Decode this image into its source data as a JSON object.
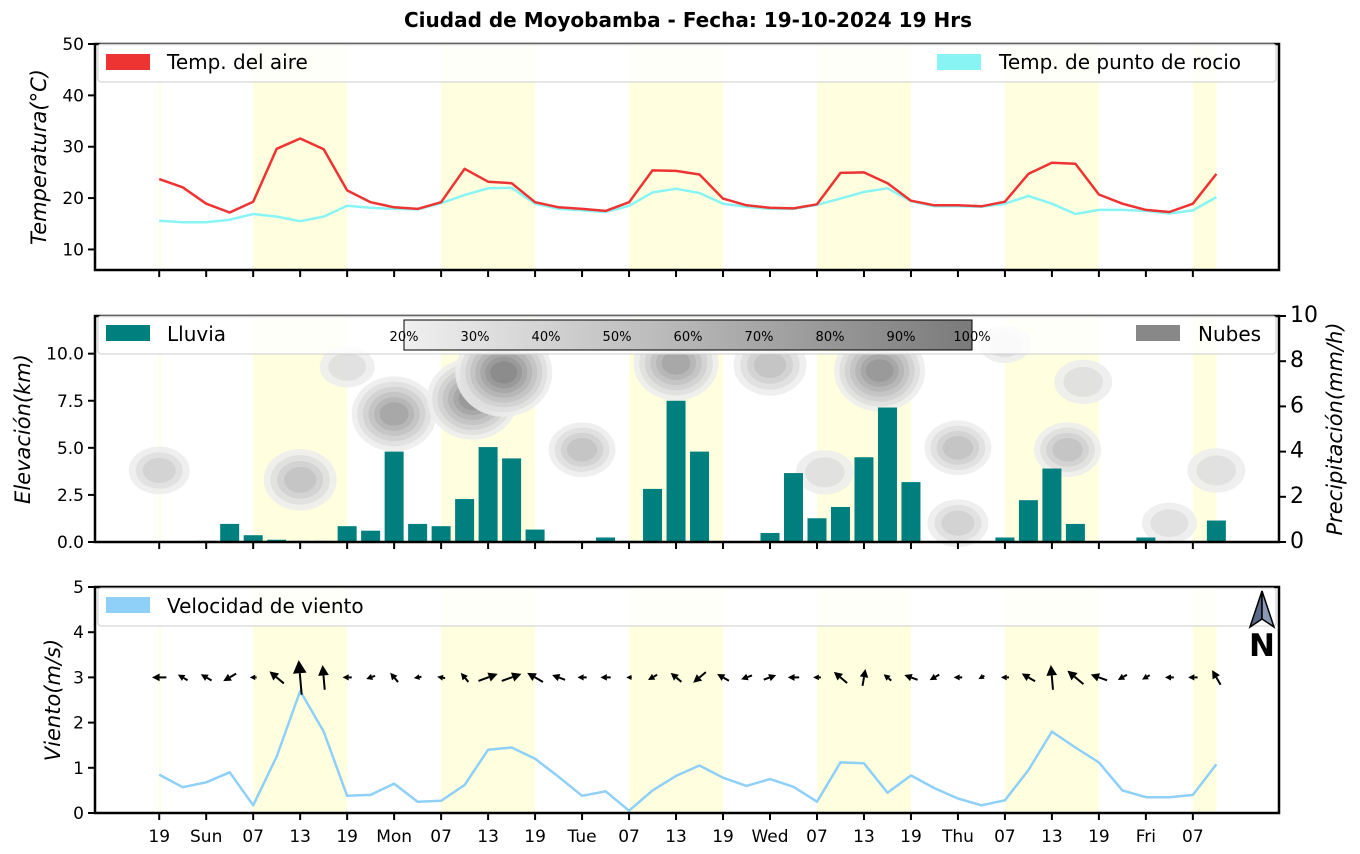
{
  "title": "Ciudad de Moyobamba   -   Fecha: 19-10-2024 19 Hrs",
  "colors": {
    "temp_air": "#ee3333",
    "temp_dew": "#88f4f4",
    "rain": "#007f7f",
    "clouds": "#888888",
    "wind": "#8fd0f8",
    "day_band": "#ffffe0"
  },
  "x_axis": {
    "tick_labels": [
      "19",
      "Sun",
      "07",
      "13",
      "19",
      "Mon",
      "07",
      "13",
      "19",
      "Tue",
      "07",
      "13",
      "19",
      "Wed",
      "07",
      "13",
      "19",
      "Thu",
      "07",
      "13",
      "19",
      "Fri",
      "07"
    ],
    "tick_hours": [
      0,
      3,
      6,
      9,
      12,
      15,
      18,
      21,
      24,
      27,
      30,
      33,
      36,
      39,
      42,
      45,
      48,
      51,
      54,
      57,
      60,
      63,
      66
    ],
    "range_hours": [
      -4.1,
      71.5
    ],
    "day_bands_hours": [
      [
        0,
        0.1
      ],
      [
        6,
        12
      ],
      [
        18,
        24
      ],
      [
        30,
        36
      ],
      [
        42,
        48
      ],
      [
        54,
        60
      ],
      [
        66,
        67.5
      ]
    ]
  },
  "chart_data": [
    {
      "type": "line",
      "title": "",
      "xlabel": "",
      "ylabel": "Temperatura(°C)",
      "ylim": [
        6,
        50
      ],
      "yticks": [
        10,
        20,
        30,
        40,
        50
      ],
      "x": [
        0,
        1.5,
        3,
        4.5,
        6,
        7.5,
        9,
        10.5,
        12,
        13.5,
        15,
        16.5,
        18,
        19.5,
        21,
        22.5,
        24,
        25.5,
        27,
        28.5,
        30,
        31.5,
        33,
        34.5,
        36,
        37.5,
        39,
        40.5,
        42,
        43.5,
        45,
        46.5,
        48,
        49.5,
        51,
        52.5,
        54,
        55.5,
        57,
        58.5,
        60,
        61.5,
        63,
        64.5,
        66,
        67.5
      ],
      "series": [
        {
          "name": "Temp. del aire",
          "values": [
            23.7,
            22.1,
            18.9,
            17.2,
            19.3,
            29.6,
            31.6,
            29.5,
            21.5,
            19.2,
            18.2,
            17.9,
            19.2,
            25.7,
            23.2,
            22.9,
            19.2,
            18.2,
            17.9,
            17.5,
            19.2,
            25.4,
            25.3,
            24.6,
            19.9,
            18.6,
            18.1,
            18.0,
            18.8,
            24.9,
            25.0,
            22.9,
            19.5,
            18.6,
            18.6,
            18.4,
            19.3,
            24.7,
            26.9,
            26.7,
            20.7,
            18.9,
            17.7,
            17.3,
            18.9,
            24.7
          ]
        },
        {
          "name": "Temp. de punto de rocio",
          "values": [
            15.6,
            15.3,
            15.3,
            15.8,
            16.9,
            16.4,
            15.5,
            16.4,
            18.5,
            18.1,
            17.9,
            17.8,
            19.0,
            20.6,
            21.9,
            22.0,
            18.9,
            17.9,
            17.6,
            17.3,
            18.5,
            21.1,
            21.8,
            21.0,
            18.9,
            18.3,
            17.9,
            17.9,
            18.7,
            19.9,
            21.2,
            21.9,
            19.4,
            18.4,
            18.4,
            18.3,
            18.9,
            20.4,
            18.9,
            16.9,
            17.7,
            17.7,
            17.5,
            17.0,
            17.6,
            20.2
          ]
        }
      ],
      "legend": "top"
    },
    {
      "type": "bar",
      "title": "",
      "xlabel": "",
      "ylabel": "Elevación(km)",
      "ylabel_right": "Precipitación(mm/h)",
      "ylim": [
        0,
        12
      ],
      "yticks": [
        0.0,
        2.5,
        5.0,
        7.5,
        10.0
      ],
      "ytick_labels": [
        "0.0",
        "2.5",
        "5.0",
        "7.5",
        "10.0"
      ],
      "ylim_right": [
        0,
        10
      ],
      "yticks_right": [
        0,
        2,
        4,
        6,
        8,
        10
      ],
      "x": [
        0,
        1.5,
        3,
        4.5,
        6,
        7.5,
        9,
        10.5,
        12,
        13.5,
        15,
        16.5,
        18,
        19.5,
        21,
        22.5,
        24,
        25.5,
        27,
        28.5,
        30,
        31.5,
        33,
        34.5,
        36,
        37.5,
        39,
        40.5,
        42,
        43.5,
        45,
        46.5,
        48,
        49.5,
        51,
        52.5,
        54,
        55.5,
        57,
        58.5,
        60,
        61.5,
        63,
        64.5,
        66,
        67.5
      ],
      "series": [
        {
          "name": "Lluvia",
          "values": [
            0,
            0,
            0.05,
            0.8,
            0.3,
            0.1,
            0.05,
            0.05,
            0.7,
            0.5,
            4.0,
            0.8,
            0.7,
            1.9,
            4.2,
            3.7,
            0.55,
            0,
            0,
            0.2,
            0.05,
            2.35,
            6.25,
            4.0,
            0,
            0,
            0.4,
            3.05,
            1.05,
            1.55,
            3.75,
            5.95,
            2.65,
            0,
            0,
            0,
            0.2,
            1.85,
            3.25,
            0.8,
            0,
            0,
            0.2,
            0,
            0,
            0.95
          ]
        }
      ],
      "clouds_label": "Nubes",
      "cloud_cover_percent": [
        20,
        30,
        40,
        50,
        60,
        70,
        80,
        90,
        100
      ],
      "cloud_patches": [
        {
          "x": 0,
          "elev": 3.8,
          "intensity": 0.35
        },
        {
          "x": 9,
          "elev": 3.3,
          "intensity": 0.55
        },
        {
          "x": 12,
          "elev": 9.3,
          "intensity": 0.25
        },
        {
          "x": 15,
          "elev": 6.8,
          "intensity": 0.75
        },
        {
          "x": 20,
          "elev": 7.6,
          "intensity": 0.85
        },
        {
          "x": 22,
          "elev": 9.0,
          "intensity": 0.95
        },
        {
          "x": 27,
          "elev": 4.9,
          "intensity": 0.45
        },
        {
          "x": 33,
          "elev": 9.5,
          "intensity": 0.75
        },
        {
          "x": 39,
          "elev": 9.4,
          "intensity": 0.55
        },
        {
          "x": 42.5,
          "elev": 3.7,
          "intensity": 0.3
        },
        {
          "x": 46,
          "elev": 9.1,
          "intensity": 0.85
        },
        {
          "x": 51,
          "elev": 5.0,
          "intensity": 0.45
        },
        {
          "x": 51,
          "elev": 1.0,
          "intensity": 0.35
        },
        {
          "x": 54,
          "elev": 10.5,
          "intensity": 0.2
        },
        {
          "x": 58,
          "elev": 4.9,
          "intensity": 0.45
        },
        {
          "x": 59,
          "elev": 8.5,
          "intensity": 0.3
        },
        {
          "x": 64.5,
          "elev": 1.0,
          "intensity": 0.25
        },
        {
          "x": 67.5,
          "elev": 3.8,
          "intensity": 0.3
        }
      ],
      "legend": "top"
    },
    {
      "type": "line",
      "title": "",
      "xlabel": "",
      "ylabel": "Viento(m/s)",
      "ylim": [
        0,
        5
      ],
      "yticks": [
        0,
        1,
        2,
        3,
        4,
        5
      ],
      "x": [
        0,
        1.5,
        3,
        4.5,
        6,
        7.5,
        9,
        10.5,
        12,
        13.5,
        15,
        16.5,
        18,
        19.5,
        21,
        22.5,
        24,
        25.5,
        27,
        28.5,
        30,
        31.5,
        33,
        34.5,
        36,
        37.5,
        39,
        40.5,
        42,
        43.5,
        45,
        46.5,
        48,
        49.5,
        51,
        52.5,
        54,
        55.5,
        57,
        58.5,
        60,
        61.5,
        63,
        64.5,
        66,
        67.5
      ],
      "series": [
        {
          "name": "Velocidad de viento",
          "values": [
            0.85,
            0.57,
            0.68,
            0.9,
            0.17,
            1.25,
            2.7,
            1.8,
            0.38,
            0.4,
            0.65,
            0.25,
            0.27,
            0.62,
            1.4,
            1.45,
            1.2,
            0.8,
            0.38,
            0.48,
            0.05,
            0.5,
            0.82,
            1.05,
            0.78,
            0.6,
            0.75,
            0.58,
            0.25,
            1.12,
            1.1,
            0.45,
            0.83,
            0.55,
            0.32,
            0.17,
            0.28,
            0.95,
            1.8,
            1.45,
            1.12,
            0.5,
            0.35,
            0.35,
            0.4,
            1.08
          ]
        }
      ],
      "wind_direction_deg": [
        270,
        300,
        300,
        240,
        270,
        310,
        355,
        355,
        270,
        250,
        320,
        260,
        280,
        320,
        70,
        70,
        300,
        290,
        270,
        270,
        270,
        240,
        310,
        230,
        300,
        250,
        70,
        270,
        270,
        310,
        10,
        310,
        290,
        240,
        270,
        240,
        270,
        300,
        355,
        310,
        290,
        240,
        240,
        270,
        270,
        330
      ],
      "arrow_baseline": 3,
      "north_label": "N",
      "legend": "top"
    }
  ]
}
